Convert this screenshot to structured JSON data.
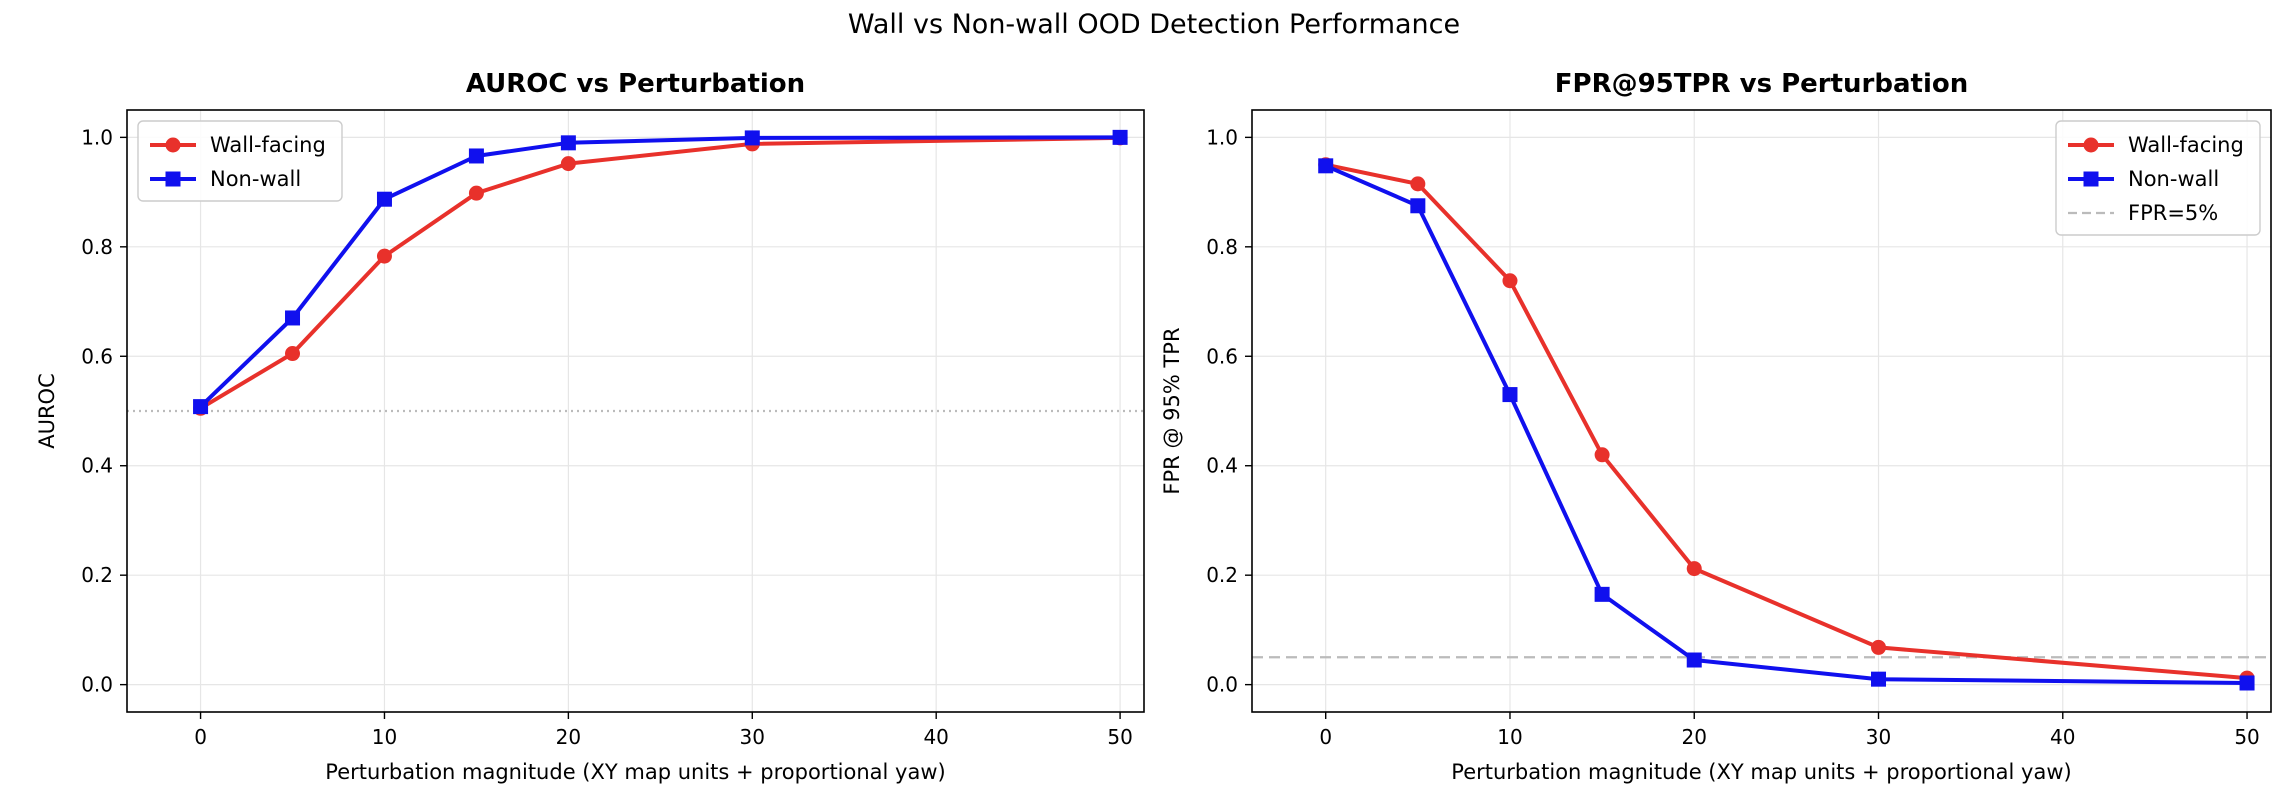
{
  "figure": {
    "suptitle": "Wall vs Non-wall OOD Detection Performance"
  },
  "colors": {
    "wall": "#e8312b",
    "nonwall": "#1010ee",
    "grid": "#e6e6e6",
    "reference": "#bbbbbb"
  },
  "chart_data": [
    {
      "type": "line",
      "title": "AUROC vs Perturbation",
      "xlabel": "Perturbation magnitude (XY map units + proportional yaw)",
      "ylabel": "AUROC",
      "xlim": [
        -4,
        51.3
      ],
      "ylim": [
        -0.05,
        1.05
      ],
      "xticks": [
        0,
        10,
        20,
        30,
        40,
        50
      ],
      "yticks": [
        0.0,
        0.2,
        0.4,
        0.6,
        0.8,
        1.0
      ],
      "grid": true,
      "legend": "upper left",
      "x": [
        0,
        5,
        10,
        15,
        20,
        30,
        50
      ],
      "series": [
        {
          "name": "Wall-facing",
          "marker": "circle",
          "color": "#e8312b",
          "values": [
            0.505,
            0.605,
            0.783,
            0.898,
            0.952,
            0.988,
            0.999
          ]
        },
        {
          "name": "Non-wall",
          "marker": "square",
          "color": "#1010ee",
          "values": [
            0.508,
            0.67,
            0.887,
            0.966,
            0.99,
            0.999,
            1.0
          ]
        }
      ],
      "reference_line": {
        "y": 0.5,
        "style": "dotted",
        "label": ""
      }
    },
    {
      "type": "line",
      "title": "FPR@95TPR vs Perturbation",
      "xlabel": "Perturbation magnitude (XY map units + proportional yaw)",
      "ylabel": "FPR @ 95% TPR",
      "xlim": [
        -4,
        51.3
      ],
      "ylim": [
        -0.05,
        1.05
      ],
      "xticks": [
        0,
        10,
        20,
        30,
        40,
        50
      ],
      "yticks": [
        0.0,
        0.2,
        0.4,
        0.6,
        0.8,
        1.0
      ],
      "grid": true,
      "legend": "upper right",
      "x": [
        0,
        5,
        10,
        15,
        20,
        30,
        50
      ],
      "series": [
        {
          "name": "Wall-facing",
          "marker": "circle",
          "color": "#e8312b",
          "values": [
            0.95,
            0.915,
            0.738,
            0.42,
            0.212,
            0.068,
            0.012
          ]
        },
        {
          "name": "Non-wall",
          "marker": "square",
          "color": "#1010ee",
          "values": [
            0.948,
            0.875,
            0.53,
            0.165,
            0.045,
            0.01,
            0.003
          ]
        }
      ],
      "reference_line": {
        "y": 0.05,
        "style": "dashed",
        "label": "FPR=5%"
      }
    }
  ]
}
